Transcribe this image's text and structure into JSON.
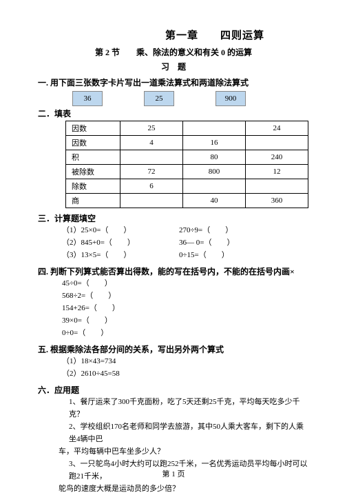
{
  "chapter": "第一章　　四则运算",
  "section": "第 2 节　　乘、除法的意义和有关 0 的运算",
  "xiti": "习　题",
  "h1": "一. 用下面三张数字卡片写出一道乘法算式和两道除法算式",
  "cards": [
    "36",
    "25",
    "900"
  ],
  "h2": "二．填表",
  "table": {
    "rows": [
      {
        "label": "因数",
        "c1": "25",
        "c2": "",
        "c3": "24"
      },
      {
        "label": "因数",
        "c1": "4",
        "c2": "16",
        "c3": ""
      },
      {
        "label": "积",
        "c1": "",
        "c2": "80",
        "c3": "240"
      },
      {
        "label": "被除数",
        "c1": "72",
        "c2": "800",
        "c3": "12"
      },
      {
        "label": "除数",
        "c1": "6",
        "c2": "",
        "c3": ""
      },
      {
        "label": "商",
        "c1": "",
        "c2": "40",
        "c3": "360"
      }
    ]
  },
  "h3": "三．计算题填空",
  "calc": [
    {
      "l": "（1）25×0=（　　）",
      "r": "270÷9=（　　）"
    },
    {
      "l": "（2）845+0=（　　）",
      "r": "36— 0=（　　）"
    },
    {
      "l": "（3）13×5=（　　）",
      "r": "0÷15=（　　）"
    }
  ],
  "h4": "四. 判断下列算式能否算出得数，能的写在括号内，不能的在括号内画×",
  "judge": [
    "45÷0=（　　）",
    "568÷2=（　　）",
    "154+26=（　　）",
    "39×0=（　　）",
    "0÷0=（　　）"
  ],
  "h5": "五. 根据乘除法各部分间的关系，写出另外两个算式",
  "rel": [
    "（1）18×43=734",
    "（2）2610÷45=58"
  ],
  "h6": "六．应用题",
  "app": [
    "1、餐厅运来了300千克面粉，吃了5天还剩25千克，平均每天吃多少千克？",
    "2、学校组织170名老师和同学去旅游，其中50人乘大客车，剩下的人乘坐4辆中巴",
    "车，平均每辆中巴车坐多少人？",
    "3、一只鸵鸟4小时大约可以跑252千米，一名优秀运动员平均每小时可以跑21千米，",
    "鸵鸟的速度大概是运动员的多少倍？"
  ],
  "footer": "第 1 页"
}
